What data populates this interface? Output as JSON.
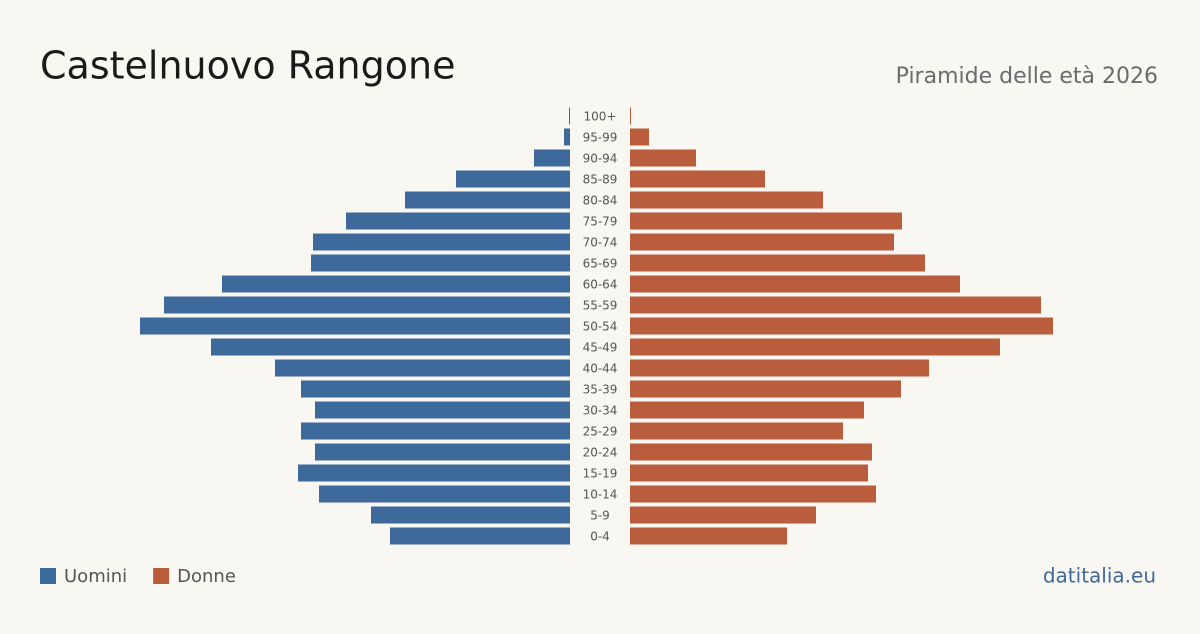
{
  "chart_data": {
    "type": "pyramid",
    "title": "Castelnuovo Rangone",
    "subtitle": "Piramide delle età 2026",
    "source": "datitalia.eu",
    "categories": [
      "0-4",
      "5-9",
      "10-14",
      "15-19",
      "20-24",
      "25-29",
      "30-34",
      "35-39",
      "40-44",
      "45-49",
      "50-54",
      "55-59",
      "60-64",
      "65-69",
      "70-74",
      "75-79",
      "80-84",
      "85-89",
      "90-94",
      "95-99",
      "100+"
    ],
    "xlim": [
      0,
      430
    ],
    "series": [
      {
        "name": "Uomini",
        "color": "#3d6a9b",
        "side": "left",
        "values": [
          180,
          199,
          251,
          272,
          255,
          269,
          255,
          269,
          295,
          359,
          430,
          406,
          348,
          259,
          257,
          224,
          165,
          114,
          36,
          6,
          1
        ]
      },
      {
        "name": "Donne",
        "color": "#b95d3c",
        "side": "right",
        "values": [
          157,
          186,
          246,
          238,
          242,
          213,
          234,
          271,
          299,
          370,
          423,
          411,
          330,
          295,
          264,
          272,
          193,
          135,
          66,
          19,
          1
        ]
      }
    ]
  }
}
